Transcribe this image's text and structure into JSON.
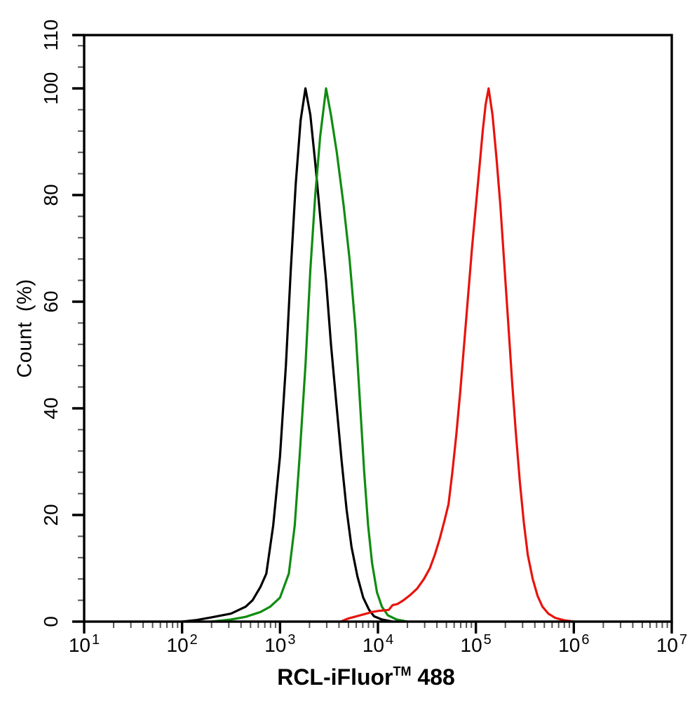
{
  "figure": {
    "background": "#ffffff",
    "axis_color": "#000000"
  },
  "axis_titles": {
    "x_prefix": "RCL-iFluor",
    "x_tm": "TM",
    "x_suffix": " 488",
    "y": "Count (%)"
  },
  "chart_data": {
    "type": "line",
    "subtype": "flow-cytometry-histogram-overlay",
    "title": "",
    "xlabel": "RCL-iFluor™ 488",
    "ylabel": "Count (%)",
    "x_scale": "log10",
    "x_range_log10": [
      1,
      7
    ],
    "x_tick_exponents": [
      1,
      2,
      3,
      4,
      5,
      6,
      7
    ],
    "x_tick_base": "10",
    "x_minor_mantissas": [
      2,
      3,
      4,
      5,
      6,
      7,
      8,
      9
    ],
    "ylim": [
      0,
      110
    ],
    "y_major_ticks": [
      0,
      20,
      40,
      60,
      80,
      100,
      110
    ],
    "y_minor_step": 4,
    "grid": false,
    "legend": null,
    "peaks_approx": [
      {
        "series": "black-curve",
        "x": 1800,
        "y_pct": 100
      },
      {
        "series": "green-curve",
        "x": 3000,
        "y_pct": 100
      },
      {
        "series": "red-curve",
        "x": 130000,
        "y_pct": 100
      }
    ],
    "series": [
      {
        "name": "black-curve",
        "color": "#000000",
        "points_log10x_pct": [
          [
            2.0,
            0
          ],
          [
            2.15,
            0.3
          ],
          [
            2.3,
            0.8
          ],
          [
            2.5,
            1.5
          ],
          [
            2.65,
            2.8
          ],
          [
            2.72,
            4
          ],
          [
            2.8,
            6.5
          ],
          [
            2.86,
            9
          ],
          [
            2.93,
            18
          ],
          [
            3.0,
            31
          ],
          [
            3.06,
            48
          ],
          [
            3.11,
            66
          ],
          [
            3.16,
            82
          ],
          [
            3.21,
            94
          ],
          [
            3.26,
            100
          ],
          [
            3.31,
            95
          ],
          [
            3.36,
            86
          ],
          [
            3.42,
            74
          ],
          [
            3.47,
            64
          ],
          [
            3.52,
            52
          ],
          [
            3.58,
            40
          ],
          [
            3.63,
            30
          ],
          [
            3.68,
            21
          ],
          [
            3.73,
            14
          ],
          [
            3.79,
            8.5
          ],
          [
            3.85,
            4.5
          ],
          [
            3.91,
            2.2
          ],
          [
            3.96,
            1
          ],
          [
            4.04,
            0.4
          ],
          [
            4.15,
            0
          ]
        ]
      },
      {
        "name": "green-curve",
        "color": "#108c10",
        "points_log10x_pct": [
          [
            2.3,
            0
          ],
          [
            2.5,
            0.4
          ],
          [
            2.65,
            0.9
          ],
          [
            2.8,
            1.8
          ],
          [
            2.9,
            2.8
          ],
          [
            3.0,
            4.5
          ],
          [
            3.09,
            9
          ],
          [
            3.15,
            18
          ],
          [
            3.2,
            31
          ],
          [
            3.26,
            48
          ],
          [
            3.31,
            66
          ],
          [
            3.36,
            80
          ],
          [
            3.41,
            91
          ],
          [
            3.47,
            100
          ],
          [
            3.52,
            95
          ],
          [
            3.58,
            88
          ],
          [
            3.65,
            78
          ],
          [
            3.71,
            68
          ],
          [
            3.77,
            55
          ],
          [
            3.82,
            40
          ],
          [
            3.86,
            28
          ],
          [
            3.9,
            18
          ],
          [
            3.94,
            11
          ],
          [
            3.99,
            5.5
          ],
          [
            4.04,
            2.8
          ],
          [
            4.1,
            1.2
          ],
          [
            4.19,
            0.4
          ],
          [
            4.3,
            0
          ]
        ]
      },
      {
        "name": "red-curve",
        "color": "#e8130d",
        "points_log10x_pct": [
          [
            3.62,
            0
          ],
          [
            3.7,
            0.6
          ],
          [
            3.78,
            1.0
          ],
          [
            3.86,
            1.4
          ],
          [
            3.94,
            1.8
          ],
          [
            4.0,
            2.0
          ],
          [
            4.06,
            2.1
          ],
          [
            4.11,
            2.2
          ],
          [
            4.15,
            3.1
          ],
          [
            4.2,
            3.3
          ],
          [
            4.26,
            4.0
          ],
          [
            4.33,
            5.0
          ],
          [
            4.4,
            6.2
          ],
          [
            4.47,
            8.0
          ],
          [
            4.53,
            10
          ],
          [
            4.58,
            12.5
          ],
          [
            4.63,
            15.5
          ],
          [
            4.68,
            19
          ],
          [
            4.72,
            22
          ],
          [
            4.76,
            28
          ],
          [
            4.8,
            35
          ],
          [
            4.84,
            43
          ],
          [
            4.88,
            52
          ],
          [
            4.92,
            61
          ],
          [
            4.96,
            70
          ],
          [
            5.0,
            78
          ],
          [
            5.04,
            86
          ],
          [
            5.07,
            92
          ],
          [
            5.1,
            97
          ],
          [
            5.13,
            100
          ],
          [
            5.17,
            95
          ],
          [
            5.21,
            87
          ],
          [
            5.25,
            78
          ],
          [
            5.29,
            67
          ],
          [
            5.33,
            56
          ],
          [
            5.37,
            45
          ],
          [
            5.41,
            35
          ],
          [
            5.45,
            26
          ],
          [
            5.49,
            18.5
          ],
          [
            5.53,
            12.5
          ],
          [
            5.58,
            8
          ],
          [
            5.63,
            4.8
          ],
          [
            5.68,
            2.8
          ],
          [
            5.74,
            1.5
          ],
          [
            5.81,
            0.7
          ],
          [
            5.9,
            0.25
          ],
          [
            6.0,
            0
          ]
        ]
      }
    ]
  }
}
